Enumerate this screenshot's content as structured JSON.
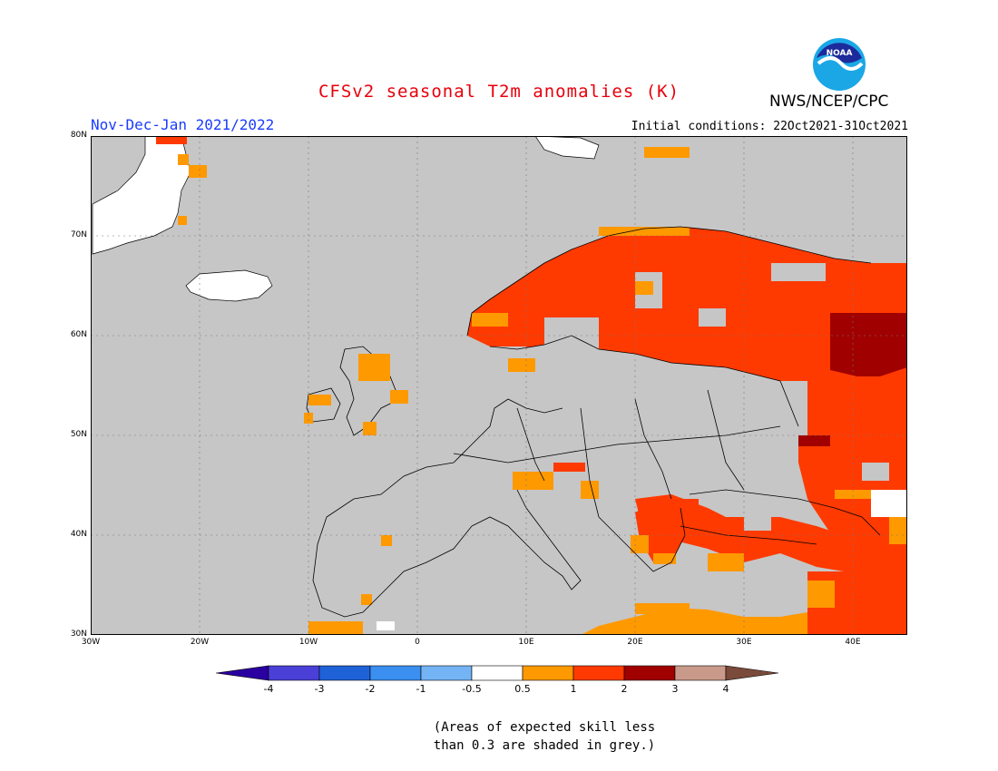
{
  "header": {
    "title": "CFSv2 seasonal T2m anomalies (K)",
    "period": "Nov-Dec-Jan 2021/2022",
    "initial_conditions": "Initial conditions: 22Oct2021-31Oct2021",
    "agency": "NWS/NCEP/CPC",
    "logo_text": "NOAA"
  },
  "colors": {
    "title": "#e8000b",
    "period": "#1a3cff",
    "grey_low_skill": "#c6c6c6",
    "ocean": "#c6c6c6",
    "anom_0_5_to_1": "#ff9900",
    "anom_1_to_2": "#ff3a00",
    "anom_2_to_3": "#a00000"
  },
  "map": {
    "lat_labels": [
      "80N",
      "70N",
      "60N",
      "50N",
      "40N",
      "30N"
    ],
    "lon_labels": [
      "30W",
      "20W",
      "10W",
      "0",
      "10E",
      "20E",
      "30E",
      "40E"
    ]
  },
  "colorbar": {
    "labels": [
      "-4",
      "-3",
      "-2",
      "-1",
      "-0.5",
      "0.5",
      "1",
      "2",
      "3",
      "4"
    ],
    "colors": [
      "#2a00a0",
      "#4a3fd6",
      "#1f62d8",
      "#3a8ff0",
      "#74b4f5",
      "#ffffff",
      "#ff9900",
      "#ff3a00",
      "#a00000",
      "#c99a8a",
      "#7a4a3a"
    ]
  },
  "note": {
    "line1": "(Areas of expected skill less",
    "line2": "than 0.3 are shaded in grey.)"
  }
}
